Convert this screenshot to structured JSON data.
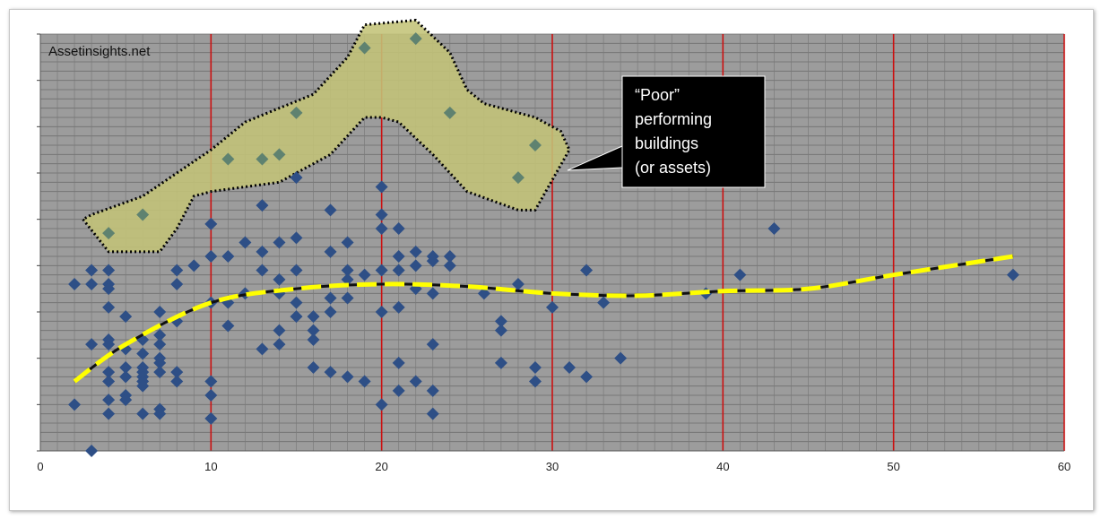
{
  "watermark": "Assetinsights.net",
  "callout": {
    "lines": [
      "“Poor”",
      "performing",
      "buildings",
      "(or assets)"
    ]
  },
  "colors": {
    "plot_bg": "#9c9c9c",
    "grid_h": "#6e6e6e",
    "grid_v_minor": "#7a7a7a",
    "grid_v_major": "#cc1111",
    "marker": "#2e4f86",
    "highlight_fill": "#c3c378",
    "highlight_marker": "#5f8270",
    "trend_yellow": "#ffff00",
    "trend_black": "#111111",
    "callout_bg": "#000000"
  },
  "chart_data": {
    "type": "scatter",
    "xlim": [
      0,
      60
    ],
    "ylim": [
      0,
      9
    ],
    "x_ticks": [
      "0",
      "10",
      "20",
      "30",
      "40",
      "50",
      "60"
    ],
    "grid": true,
    "series": [
      {
        "values": [
          [
            2,
            3.6
          ],
          [
            2,
            1.0
          ],
          [
            3,
            3.9
          ],
          [
            3,
            3.6
          ],
          [
            3,
            2.3
          ],
          [
            3,
            0.0
          ],
          [
            4,
            3.9
          ],
          [
            4,
            3.6
          ],
          [
            4,
            3.5
          ],
          [
            4,
            3.1
          ],
          [
            4,
            2.4
          ],
          [
            4,
            2.3
          ],
          [
            4,
            1.7
          ],
          [
            4,
            1.5
          ],
          [
            4,
            1.1
          ],
          [
            4,
            0.8
          ],
          [
            5,
            2.9
          ],
          [
            5,
            2.2
          ],
          [
            5,
            1.8
          ],
          [
            5,
            1.6
          ],
          [
            5,
            1.2
          ],
          [
            5,
            1.1
          ],
          [
            6,
            2.4
          ],
          [
            6,
            2.1
          ],
          [
            6,
            1.8
          ],
          [
            6,
            1.7
          ],
          [
            6,
            1.6
          ],
          [
            6,
            1.5
          ],
          [
            6,
            1.4
          ],
          [
            6,
            0.8
          ],
          [
            7,
            3.0
          ],
          [
            7,
            2.5
          ],
          [
            7,
            2.3
          ],
          [
            7,
            2.0
          ],
          [
            7,
            1.9
          ],
          [
            7,
            1.7
          ],
          [
            7,
            0.9
          ],
          [
            7,
            0.8
          ],
          [
            8,
            3.9
          ],
          [
            8,
            3.6
          ],
          [
            8,
            2.8
          ],
          [
            8,
            1.7
          ],
          [
            8,
            1.5
          ],
          [
            9,
            4.0
          ],
          [
            10,
            4.9
          ],
          [
            10,
            4.2
          ],
          [
            10,
            3.2
          ],
          [
            10,
            1.5
          ],
          [
            10,
            1.2
          ],
          [
            10,
            0.7
          ],
          [
            11,
            4.2
          ],
          [
            11,
            3.2
          ],
          [
            11,
            2.7
          ],
          [
            12,
            4.5
          ],
          [
            12,
            3.4
          ],
          [
            13,
            5.3
          ],
          [
            13,
            4.3
          ],
          [
            13,
            3.9
          ],
          [
            13,
            2.2
          ],
          [
            14,
            4.5
          ],
          [
            14,
            3.7
          ],
          [
            14,
            3.4
          ],
          [
            14,
            2.6
          ],
          [
            14,
            2.3
          ],
          [
            15,
            5.9
          ],
          [
            15,
            4.6
          ],
          [
            15,
            3.9
          ],
          [
            15,
            3.2
          ],
          [
            15,
            2.9
          ],
          [
            16,
            2.9
          ],
          [
            16,
            2.6
          ],
          [
            16,
            2.4
          ],
          [
            16,
            1.8
          ],
          [
            17,
            5.2
          ],
          [
            17,
            4.3
          ],
          [
            17,
            3.3
          ],
          [
            17,
            3.0
          ],
          [
            17,
            1.7
          ],
          [
            18,
            4.5
          ],
          [
            18,
            3.9
          ],
          [
            18,
            3.7
          ],
          [
            18,
            3.3
          ],
          [
            18,
            1.6
          ],
          [
            19,
            3.8
          ],
          [
            19,
            1.5
          ],
          [
            20,
            5.7
          ],
          [
            20,
            5.1
          ],
          [
            20,
            4.8
          ],
          [
            20,
            3.9
          ],
          [
            20,
            3.0
          ],
          [
            20,
            1.0
          ],
          [
            21,
            4.8
          ],
          [
            21,
            4.2
          ],
          [
            21,
            3.9
          ],
          [
            21,
            3.1
          ],
          [
            21,
            1.9
          ],
          [
            21,
            1.3
          ],
          [
            22,
            4.3
          ],
          [
            22,
            4.0
          ],
          [
            22,
            3.5
          ],
          [
            22,
            1.5
          ],
          [
            23,
            4.2
          ],
          [
            23,
            4.1
          ],
          [
            23,
            3.4
          ],
          [
            23,
            2.3
          ],
          [
            23,
            1.3
          ],
          [
            23,
            0.8
          ],
          [
            24,
            4.2
          ],
          [
            24,
            4.0
          ],
          [
            26,
            3.4
          ],
          [
            27,
            2.8
          ],
          [
            27,
            2.6
          ],
          [
            27,
            1.9
          ],
          [
            28,
            3.6
          ],
          [
            29,
            1.8
          ],
          [
            29,
            1.5
          ],
          [
            30,
            3.1
          ],
          [
            31,
            1.8
          ],
          [
            32,
            3.9
          ],
          [
            32,
            1.6
          ],
          [
            33,
            3.2
          ],
          [
            34,
            2.0
          ],
          [
            39,
            3.4
          ],
          [
            41,
            3.8
          ],
          [
            43,
            4.8
          ],
          [
            57,
            3.8
          ]
        ]
      },
      {
        "values": [
          [
            4,
            4.7
          ],
          [
            6,
            5.1
          ],
          [
            11,
            6.3
          ],
          [
            13,
            6.3
          ],
          [
            14,
            6.4
          ],
          [
            15,
            7.3
          ],
          [
            19,
            8.7
          ],
          [
            22,
            8.9
          ],
          [
            24,
            7.3
          ],
          [
            28,
            5.9
          ],
          [
            29,
            6.6
          ]
        ]
      }
    ],
    "trendline": [
      [
        2,
        1.5
      ],
      [
        5,
        2.3
      ],
      [
        10,
        3.2
      ],
      [
        15,
        3.5
      ],
      [
        20,
        3.6
      ],
      [
        25,
        3.55
      ],
      [
        30,
        3.4
      ],
      [
        35,
        3.35
      ],
      [
        40,
        3.45
      ],
      [
        45,
        3.5
      ],
      [
        50,
        3.8
      ],
      [
        57,
        4.2
      ]
    ],
    "highlight_region": [
      [
        2.5,
        5.0
      ],
      [
        4,
        4.3
      ],
      [
        7,
        4.3
      ],
      [
        8,
        4.8
      ],
      [
        9,
        5.5
      ],
      [
        10,
        5.6
      ],
      [
        14,
        5.8
      ],
      [
        17,
        6.4
      ],
      [
        19,
        7.2
      ],
      [
        20,
        7.2
      ],
      [
        21,
        7.1
      ],
      [
        23,
        6.4
      ],
      [
        25,
        5.6
      ],
      [
        28,
        5.2
      ],
      [
        29,
        5.2
      ],
      [
        31,
        6.5
      ],
      [
        30.5,
        6.9
      ],
      [
        29,
        7.2
      ],
      [
        26,
        7.5
      ],
      [
        25,
        7.8
      ],
      [
        24,
        8.6
      ],
      [
        22,
        9.3
      ],
      [
        19,
        9.2
      ],
      [
        18,
        8.5
      ],
      [
        16,
        7.7
      ],
      [
        14,
        7.4
      ],
      [
        12,
        7.1
      ],
      [
        10,
        6.5
      ],
      [
        8,
        6.0
      ],
      [
        6,
        5.5
      ],
      [
        3,
        5.1
      ]
    ]
  }
}
